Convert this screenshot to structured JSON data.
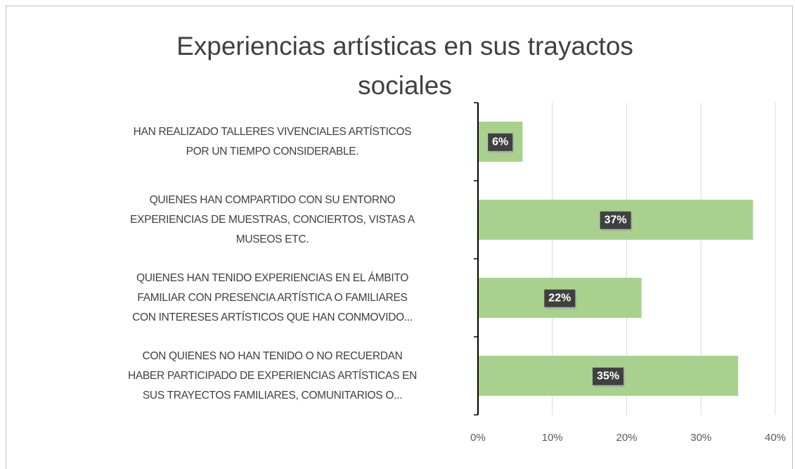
{
  "chart_data": {
    "type": "bar",
    "orientation": "horizontal",
    "title": "Experiencias artísticas en sus trayactos\nsociales",
    "categories": [
      "HAN REALIZADO TALLERES VIVENCIALES ARTÍSTICOS\nPOR UN TIEMPO CONSIDERABLE.",
      "QUIENES HAN COMPARTIDO CON SU ENTORNO\nEXPERIENCIAS DE MUESTRAS, CONCIERTOS, VISTAS A\nMUSEOS ETC.",
      "QUIENES HAN TENIDO EXPERIENCIAS EN EL ÁMBITO\nFAMILIAR CON PRESENCIA ARTÍSTICA O FAMILIARES\nCON INTERESES ARTÍSTICOS QUE HAN CONMOVIDO...",
      "CON QUIENES NO HAN TENIDO O NO RECUERDAN\nHABER PARTICIPADO DE EXPERIENCIAS ARTÍSTICAS EN\nSUS TRAYECTOS FAMILIARES, COMUNITARIOS O..."
    ],
    "values": [
      6,
      37,
      22,
      35
    ],
    "value_labels": [
      "6%",
      "37%",
      "22%",
      "35%"
    ],
    "color": "#a9d18e",
    "xlim": [
      0,
      40
    ],
    "xticks": [
      {
        "value": 0,
        "label": "0%"
      },
      {
        "value": 10,
        "label": "10%"
      },
      {
        "value": 20,
        "label": "20%"
      },
      {
        "value": 30,
        "label": "30%"
      },
      {
        "value": 40,
        "label": "40%"
      }
    ],
    "grid": true
  }
}
